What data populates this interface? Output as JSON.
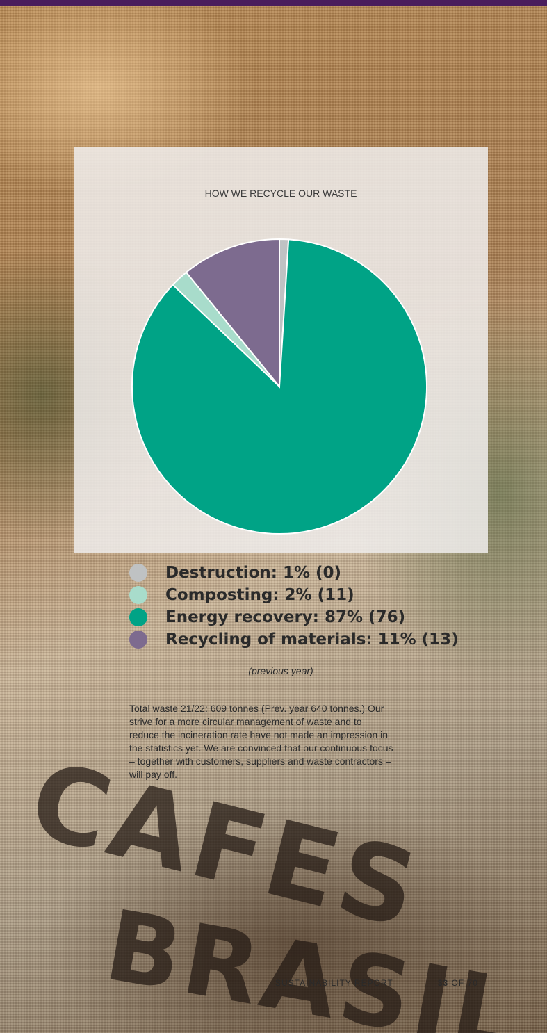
{
  "colors": {
    "header_bar": "#4a1d5c",
    "destruction": "#bfc2c3",
    "composting": "#a8dccb",
    "energy_recovery": "#00a386",
    "recycling": "#7d6b8f"
  },
  "chart_data": {
    "type": "pie",
    "title": "HOW WE RECYCLE OUR WASTE",
    "slices": [
      {
        "label": "Destruction",
        "percent": 1,
        "value": 0,
        "color": "#bfc2c3"
      },
      {
        "label": "Energy recovery",
        "percent": 87,
        "value": 76,
        "color": "#00a386"
      },
      {
        "label": "Composting",
        "percent": 2,
        "value": 11,
        "color": "#a8dccb"
      },
      {
        "label": "Recycling of materials",
        "percent": 11,
        "value": 13,
        "color": "#7d6b8f"
      }
    ],
    "legend": [
      {
        "text": "Destruction: 1% (0)",
        "color": "#bfc2c3"
      },
      {
        "text": "Composting: 2% (11)",
        "color": "#a8dccb"
      },
      {
        "text": "Energy recovery: 87% (76)",
        "color": "#00a386"
      },
      {
        "text": "Recycling of materials: 11% (13)",
        "color": "#7d6b8f"
      }
    ],
    "legend_note": "(previous year)"
  },
  "body_text": "Total waste 21/22: 609 tonnes (Prev. year 640 tonnes.) Our strive for a more circular management of waste and to reduce the incineration rate have not made an impression in the statistics yet. We are convinced that our continuous focus – together with customers, suppliers and waste contractors – will pay off.",
  "background_stamp": {
    "line1": "CAFES",
    "line2": "BRASIL"
  },
  "footer": {
    "report": "SUSTAINABILITY REPORT",
    "page": "33",
    "of": "OF 70"
  }
}
